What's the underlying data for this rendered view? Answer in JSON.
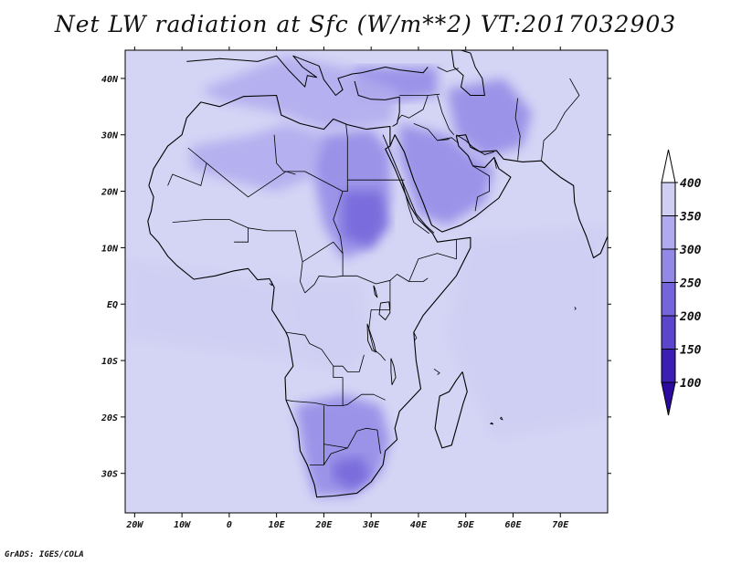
{
  "title": "Net LW radiation at Sfc (W/m**2) VT:2017032903",
  "footer": "GrADS: IGES/COLA",
  "map": {
    "lon_range": [
      -22,
      80
    ],
    "lat_range": [
      -37,
      45
    ],
    "lon_ticks": [
      {
        "value": -20,
        "label": "20W"
      },
      {
        "value": -10,
        "label": "10W"
      },
      {
        "value": 0,
        "label": "0"
      },
      {
        "value": 10,
        "label": "10E"
      },
      {
        "value": 20,
        "label": "20E"
      },
      {
        "value": 30,
        "label": "30E"
      },
      {
        "value": 40,
        "label": "40E"
      },
      {
        "value": 50,
        "label": "50E"
      },
      {
        "value": 60,
        "label": "60E"
      },
      {
        "value": 70,
        "label": "70E"
      }
    ],
    "lat_ticks": [
      {
        "value": 40,
        "label": "40N"
      },
      {
        "value": 30,
        "label": "30N"
      },
      {
        "value": 20,
        "label": "20N"
      },
      {
        "value": 10,
        "label": "10N"
      },
      {
        "value": 0,
        "label": "EQ"
      },
      {
        "value": -10,
        "label": "10S"
      },
      {
        "value": -20,
        "label": "20S"
      },
      {
        "value": -30,
        "label": "30S"
      }
    ],
    "background_color": "#d4d4f5",
    "regions": [
      {
        "name": "sahara-west",
        "level": 300,
        "lonlat": [
          [
            -8,
            28
          ],
          [
            5,
            30
          ],
          [
            12,
            32
          ],
          [
            20,
            30
          ],
          [
            22,
            24
          ],
          [
            10,
            20
          ],
          [
            0,
            22
          ],
          [
            -8,
            24
          ]
        ]
      },
      {
        "name": "sahara-east",
        "level": 250,
        "lonlat": [
          [
            20,
            30
          ],
          [
            30,
            31
          ],
          [
            34,
            27
          ],
          [
            34,
            18
          ],
          [
            30,
            10
          ],
          [
            24,
            8
          ],
          [
            20,
            14
          ],
          [
            18,
            22
          ]
        ]
      },
      {
        "name": "sudan-core",
        "level": 200,
        "lonlat": [
          [
            24,
            20
          ],
          [
            32,
            20
          ],
          [
            34,
            14
          ],
          [
            30,
            10
          ],
          [
            24,
            12
          ]
        ]
      },
      {
        "name": "arabia",
        "level": 250,
        "lonlat": [
          [
            36,
            32
          ],
          [
            46,
            30
          ],
          [
            52,
            26
          ],
          [
            56,
            24
          ],
          [
            54,
            18
          ],
          [
            46,
            14
          ],
          [
            40,
            16
          ],
          [
            36,
            26
          ]
        ]
      },
      {
        "name": "iran",
        "level": 250,
        "lonlat": [
          [
            46,
            38
          ],
          [
            58,
            40
          ],
          [
            64,
            34
          ],
          [
            62,
            28
          ],
          [
            54,
            26
          ],
          [
            48,
            30
          ]
        ]
      },
      {
        "name": "turkey",
        "level": 250,
        "lonlat": [
          [
            26,
            42
          ],
          [
            44,
            42
          ],
          [
            44,
            37
          ],
          [
            36,
            36
          ],
          [
            27,
            37
          ]
        ]
      },
      {
        "name": "mediterranean",
        "level": 300,
        "lonlat": [
          [
            -6,
            38
          ],
          [
            12,
            44
          ],
          [
            24,
            42
          ],
          [
            36,
            38
          ],
          [
            34,
            32
          ],
          [
            20,
            31
          ],
          [
            10,
            34
          ],
          [
            -2,
            36
          ]
        ]
      },
      {
        "name": "southern-africa",
        "level": 250,
        "lonlat": [
          [
            14,
            -18
          ],
          [
            24,
            -16
          ],
          [
            32,
            -18
          ],
          [
            34,
            -24
          ],
          [
            32,
            -30
          ],
          [
            26,
            -34
          ],
          [
            18,
            -34
          ],
          [
            16,
            -28
          ]
        ]
      },
      {
        "name": "south-africa-core",
        "level": 200,
        "lonlat": [
          [
            22,
            -28
          ],
          [
            28,
            -27
          ],
          [
            30,
            -31
          ],
          [
            26,
            -33
          ],
          [
            22,
            -31
          ]
        ]
      },
      {
        "name": "ocean-tropics",
        "level": 350,
        "lonlat": [
          [
            -22,
            8
          ],
          [
            10,
            4
          ],
          [
            12,
            -4
          ],
          [
            14,
            -10
          ],
          [
            -22,
            -6
          ]
        ]
      },
      {
        "name": "indian-ocean",
        "level": 350,
        "lonlat": [
          [
            50,
            12
          ],
          [
            80,
            14
          ],
          [
            80,
            -20
          ],
          [
            56,
            -24
          ],
          [
            46,
            -6
          ]
        ]
      },
      {
        "name": "congo",
        "level": 350,
        "lonlat": [
          [
            10,
            4
          ],
          [
            28,
            4
          ],
          [
            30,
            -8
          ],
          [
            24,
            -12
          ],
          [
            14,
            -10
          ]
        ]
      }
    ],
    "colorbar": {
      "levels": [
        400,
        350,
        300,
        250,
        200,
        150,
        100
      ],
      "colors": [
        "#e8e8fa",
        "#cfcff3",
        "#b0aaee",
        "#9288e6",
        "#7466da",
        "#5a45cc",
        "#3c1eb4"
      ],
      "top_arrow_color": "#ffffff",
      "bottom_arrow_color": "#2c0aa0"
    }
  }
}
